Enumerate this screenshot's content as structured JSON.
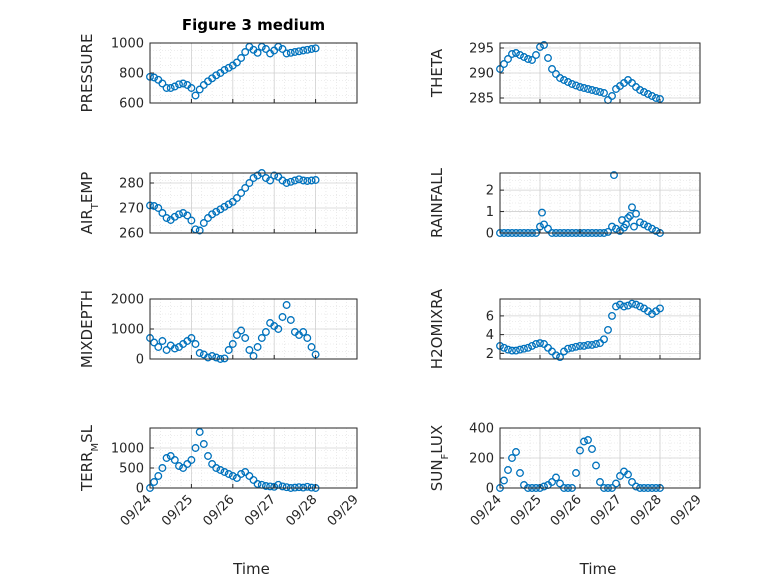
{
  "chart_data": {
    "title": "Figure 3 medium",
    "marker_color": "#0072BD",
    "x_ticks": [
      "09/24",
      "09/25",
      "09/26",
      "09/27",
      "09/28",
      "09/29"
    ],
    "xlabel": "Time",
    "grid": true,
    "panels": [
      {
        "type": "scatter",
        "ylabel": "PRESSURE",
        "ylim": [
          600,
          1000
        ],
        "yticks": [
          "600",
          "800",
          "1000"
        ],
        "x": [
          0.0,
          0.1,
          0.2,
          0.3,
          0.4,
          0.5,
          0.6,
          0.7,
          0.8,
          0.9,
          1.0,
          1.1,
          1.2,
          1.3,
          1.4,
          1.5,
          1.6,
          1.7,
          1.8,
          1.9,
          2.0,
          2.1,
          2.2,
          2.3,
          2.4,
          2.5,
          2.6,
          2.7,
          2.8,
          2.9,
          3.0,
          3.1,
          3.2,
          3.3,
          3.4,
          3.5,
          3.6,
          3.7,
          3.8,
          3.9,
          4.0
        ],
        "y": [
          775,
          770,
          755,
          730,
          700,
          700,
          710,
          725,
          730,
          720,
          700,
          650,
          690,
          720,
          745,
          765,
          785,
          800,
          820,
          835,
          850,
          870,
          900,
          940,
          975,
          955,
          935,
          975,
          960,
          930,
          950,
          975,
          960,
          930,
          935,
          940,
          945,
          950,
          955,
          960,
          965
        ]
      },
      {
        "type": "scatter",
        "ylabel": "THETA",
        "ylim": [
          284,
          296
        ],
        "yticks": [
          "285",
          "290",
          "295"
        ],
        "x": [
          0.0,
          0.1,
          0.2,
          0.3,
          0.4,
          0.5,
          0.6,
          0.7,
          0.8,
          0.9,
          1.0,
          1.1,
          1.2,
          1.3,
          1.4,
          1.5,
          1.6,
          1.7,
          1.8,
          1.9,
          2.0,
          2.1,
          2.2,
          2.3,
          2.4,
          2.5,
          2.6,
          2.7,
          2.8,
          2.9,
          3.0,
          3.1,
          3.2,
          3.3,
          3.4,
          3.5,
          3.6,
          3.7,
          3.8,
          3.9,
          4.0
        ],
        "y": [
          290.8,
          291.8,
          292.8,
          293.8,
          294.0,
          293.6,
          293.2,
          292.8,
          292.6,
          293.6,
          295.2,
          295.6,
          293.0,
          290.8,
          289.8,
          289.0,
          288.6,
          288.2,
          287.8,
          287.5,
          287.2,
          287.0,
          286.8,
          286.6,
          286.4,
          286.2,
          286.0,
          284.6,
          285.4,
          286.8,
          287.4,
          288.0,
          288.6,
          288.0,
          287.2,
          286.6,
          286.2,
          285.8,
          285.4,
          285.0,
          284.8
        ]
      },
      {
        "type": "scatter",
        "ylabel": "AIR_TEMP",
        "ylim": [
          260,
          284
        ],
        "yticks": [
          "260",
          "270",
          "280"
        ],
        "x": [
          0.0,
          0.1,
          0.2,
          0.3,
          0.4,
          0.5,
          0.6,
          0.7,
          0.8,
          0.9,
          1.0,
          1.1,
          1.2,
          1.3,
          1.4,
          1.5,
          1.6,
          1.7,
          1.8,
          1.9,
          2.0,
          2.1,
          2.2,
          2.3,
          2.4,
          2.5,
          2.6,
          2.7,
          2.8,
          2.9,
          3.0,
          3.1,
          3.2,
          3.3,
          3.4,
          3.5,
          3.6,
          3.7,
          3.8,
          3.9,
          4.0
        ],
        "y": [
          271.0,
          270.8,
          270.0,
          268.0,
          266.0,
          265.2,
          266.5,
          267.5,
          268.0,
          267.0,
          265.0,
          261.5,
          261.0,
          264.0,
          266.0,
          267.5,
          268.5,
          269.5,
          270.5,
          271.5,
          272.5,
          274.0,
          276.0,
          278.0,
          280.0,
          282.0,
          283.0,
          284.0,
          282.0,
          281.0,
          283.0,
          282.5,
          281.0,
          280.0,
          280.5,
          281.0,
          281.5,
          281.0,
          280.8,
          281.0,
          281.2
        ]
      },
      {
        "type": "scatter",
        "ylabel": "RAINFALL",
        "ylim": [
          0,
          2.8
        ],
        "yticks": [
          "0",
          "1",
          "2"
        ],
        "x": [
          0.0,
          0.1,
          0.2,
          0.3,
          0.4,
          0.5,
          0.6,
          0.7,
          0.8,
          0.9,
          1.0,
          1.05,
          1.1,
          1.2,
          1.3,
          1.4,
          1.5,
          1.6,
          1.7,
          1.8,
          1.9,
          2.0,
          2.1,
          2.2,
          2.3,
          2.4,
          2.5,
          2.6,
          2.7,
          2.8,
          2.85,
          2.9,
          3.0,
          3.05,
          3.1,
          3.15,
          3.2,
          3.25,
          3.3,
          3.35,
          3.4,
          3.5,
          3.6,
          3.7,
          3.8,
          3.9,
          4.0
        ],
        "y": [
          0,
          0,
          0,
          0,
          0,
          0,
          0,
          0,
          0,
          0,
          0.3,
          0.95,
          0.4,
          0.2,
          0,
          0,
          0,
          0,
          0,
          0,
          0,
          0,
          0,
          0,
          0,
          0,
          0,
          0,
          0.05,
          0.3,
          2.7,
          0.2,
          0.1,
          0.6,
          0.25,
          0.4,
          0.7,
          0.8,
          1.2,
          0.3,
          0.9,
          0.5,
          0.4,
          0.3,
          0.2,
          0.1,
          0
        ]
      },
      {
        "type": "scatter",
        "ylabel": "MIXDEPTH",
        "ylim": [
          0,
          2000
        ],
        "yticks": [
          "0",
          "1000",
          "2000"
        ],
        "x": [
          0.0,
          0.1,
          0.2,
          0.3,
          0.4,
          0.5,
          0.6,
          0.7,
          0.8,
          0.9,
          1.0,
          1.1,
          1.2,
          1.3,
          1.4,
          1.5,
          1.6,
          1.7,
          1.8,
          1.9,
          2.0,
          2.1,
          2.2,
          2.3,
          2.4,
          2.5,
          2.6,
          2.7,
          2.8,
          2.9,
          3.0,
          3.1,
          3.2,
          3.3,
          3.4,
          3.5,
          3.6,
          3.7,
          3.8,
          3.9,
          4.0
        ],
        "y": [
          700,
          550,
          400,
          600,
          300,
          450,
          350,
          400,
          500,
          600,
          700,
          500,
          200,
          150,
          50,
          100,
          50,
          0,
          20,
          300,
          500,
          800,
          950,
          700,
          300,
          100,
          400,
          700,
          900,
          1200,
          1100,
          1000,
          1400,
          1800,
          1300,
          900,
          800,
          900,
          700,
          400,
          150
        ]
      },
      {
        "type": "scatter",
        "ylabel": "H2OMIXRA",
        "ylim": [
          1.4,
          7.8
        ],
        "yticks": [
          "2",
          "4",
          "6"
        ],
        "x": [
          0.0,
          0.1,
          0.2,
          0.3,
          0.4,
          0.5,
          0.6,
          0.7,
          0.8,
          0.9,
          1.0,
          1.1,
          1.2,
          1.3,
          1.4,
          1.5,
          1.6,
          1.7,
          1.8,
          1.9,
          2.0,
          2.1,
          2.2,
          2.3,
          2.4,
          2.5,
          2.6,
          2.7,
          2.8,
          2.9,
          3.0,
          3.1,
          3.2,
          3.3,
          3.4,
          3.5,
          3.6,
          3.7,
          3.8,
          3.9,
          4.0
        ],
        "y": [
          2.8,
          2.6,
          2.4,
          2.3,
          2.3,
          2.4,
          2.5,
          2.6,
          2.8,
          3.0,
          3.1,
          3.0,
          2.6,
          2.2,
          1.8,
          1.6,
          2.2,
          2.5,
          2.6,
          2.7,
          2.8,
          2.8,
          2.9,
          2.9,
          3.0,
          3.1,
          3.5,
          4.5,
          6.0,
          7.0,
          7.2,
          7.0,
          7.1,
          7.3,
          7.2,
          7.0,
          6.8,
          6.5,
          6.2,
          6.5,
          6.8
        ]
      },
      {
        "type": "scatter",
        "ylabel": "TERR_MSL",
        "ylim": [
          0,
          1500
        ],
        "yticks": [
          "0",
          "500",
          "1000"
        ],
        "x": [
          0.0,
          0.1,
          0.2,
          0.3,
          0.4,
          0.5,
          0.6,
          0.7,
          0.8,
          0.9,
          1.0,
          1.1,
          1.2,
          1.3,
          1.4,
          1.5,
          1.6,
          1.7,
          1.8,
          1.9,
          2.0,
          2.1,
          2.2,
          2.3,
          2.4,
          2.5,
          2.6,
          2.7,
          2.8,
          2.9,
          3.0,
          3.1,
          3.2,
          3.3,
          3.4,
          3.5,
          3.6,
          3.7,
          3.8,
          3.9,
          4.0
        ],
        "y": [
          0,
          150,
          300,
          500,
          750,
          800,
          700,
          550,
          500,
          600,
          700,
          1000,
          1400,
          1100,
          800,
          600,
          500,
          450,
          400,
          350,
          300,
          250,
          350,
          400,
          300,
          200,
          100,
          80,
          50,
          40,
          30,
          80,
          40,
          20,
          0,
          10,
          20,
          10,
          30,
          10,
          0
        ]
      },
      {
        "type": "scatter",
        "ylabel": "SUN_FLUX",
        "ylim": [
          0,
          400
        ],
        "yticks": [
          "0",
          "200",
          "400"
        ],
        "x": [
          0.0,
          0.1,
          0.2,
          0.3,
          0.4,
          0.5,
          0.6,
          0.7,
          0.8,
          0.9,
          1.0,
          1.1,
          1.2,
          1.3,
          1.4,
          1.5,
          1.6,
          1.7,
          1.8,
          1.9,
          2.0,
          2.1,
          2.2,
          2.3,
          2.4,
          2.5,
          2.6,
          2.7,
          2.8,
          2.9,
          3.0,
          3.1,
          3.2,
          3.3,
          3.4,
          3.5,
          3.6,
          3.7,
          3.8,
          3.9,
          4.0
        ],
        "y": [
          0,
          50,
          120,
          200,
          240,
          100,
          20,
          0,
          0,
          0,
          0,
          10,
          20,
          40,
          70,
          30,
          0,
          0,
          0,
          100,
          250,
          310,
          320,
          260,
          150,
          40,
          0,
          0,
          0,
          30,
          80,
          110,
          90,
          40,
          10,
          0,
          0,
          0,
          0,
          0,
          0
        ]
      }
    ]
  }
}
